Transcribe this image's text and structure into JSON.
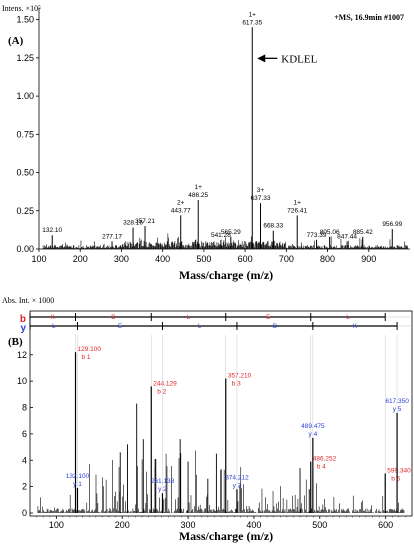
{
  "panelA": {
    "panel_label": "(A)",
    "y_title": "Intens. ×10⁵",
    "ms_info": "+MS, 16.9min #1007",
    "arrow_label": "KDLEL",
    "xlabel": "Mass/charge (m/z)",
    "chart_data": {
      "type": "bar",
      "xlim": [
        100,
        1000
      ],
      "ylim": [
        0,
        1.55
      ],
      "xticks": [
        "100",
        "200",
        "300",
        "400",
        "500",
        "600",
        "700",
        "800",
        "900"
      ],
      "yticks": [
        "0.00",
        "0.25",
        "0.50",
        "0.75",
        "1.00",
        "1.25",
        "1.50"
      ],
      "peaks": [
        {
          "x": 132.1,
          "y": 0.09,
          "label": "132.10"
        },
        {
          "x": 277.17,
          "y": 0.05,
          "label": "277.17"
        },
        {
          "x": 328.16,
          "y": 0.14,
          "label": "328.16"
        },
        {
          "x": 357.21,
          "y": 0.15,
          "label": "357.21"
        },
        {
          "x": 443.77,
          "y": 0.22,
          "label": "443.77",
          "charge": "2+"
        },
        {
          "x": 486.25,
          "y": 0.32,
          "label": "486.25",
          "charge": "1+"
        },
        {
          "x": 541.28,
          "y": 0.06,
          "label": "541.28"
        },
        {
          "x": 565.29,
          "y": 0.08,
          "label": "565.29"
        },
        {
          "x": 617.35,
          "y": 1.45,
          "label": "617.35",
          "charge": "1+"
        },
        {
          "x": 637.33,
          "y": 0.3,
          "label": "637.33",
          "charge": "3+"
        },
        {
          "x": 668.33,
          "y": 0.12,
          "label": "668.33"
        },
        {
          "x": 726.41,
          "y": 0.22,
          "label": "726.41",
          "charge": "1+"
        },
        {
          "x": 773.39,
          "y": 0.06,
          "label": "773.39"
        },
        {
          "x": 805.06,
          "y": 0.08,
          "label": "805.06"
        },
        {
          "x": 847.44,
          "y": 0.05,
          "label": "847.44"
        },
        {
          "x": 885.42,
          "y": 0.08,
          "label": "885.42"
        },
        {
          "x": 956.99,
          "y": 0.13,
          "label": "956.99"
        }
      ]
    }
  },
  "panelB": {
    "panel_label": "(B)",
    "y_title": "Abs. Int. × 1000",
    "b_label": "b",
    "y_label": "y",
    "seq": [
      "K",
      "D",
      "L",
      "E",
      "L"
    ],
    "y_seq": [
      "L",
      "E",
      "L",
      "D",
      "K"
    ],
    "xlabel": "Mass/charge (m/z)",
    "chart_data": {
      "type": "bar",
      "xlim": [
        60,
        640
      ],
      "ylim": [
        0,
        13.5
      ],
      "xticks": [
        "100",
        "200",
        "300",
        "400",
        "500",
        "600"
      ],
      "yticks": [
        "0",
        "2",
        "4",
        "6",
        "8",
        "10",
        "12"
      ],
      "b_ions": [
        {
          "x": 129.1,
          "y": 12.2,
          "mz": "129.100",
          "ion": "b 1"
        },
        {
          "x": 244.129,
          "y": 9.6,
          "mz": "244.129",
          "ion": "b 2"
        },
        {
          "x": 357.21,
          "y": 10.2,
          "mz": "357.210",
          "ion": "b 3"
        },
        {
          "x": 486.252,
          "y": 3.9,
          "mz": "486.252",
          "ion": "b 4"
        },
        {
          "x": 599.34,
          "y": 3.0,
          "mz": "599.340",
          "ion": "b 5"
        }
      ],
      "y_ions": [
        {
          "x": 132.1,
          "y": 1.9,
          "mz": "132.100",
          "ion": "y 1"
        },
        {
          "x": 261.138,
          "y": 1.5,
          "mz": "261.138",
          "ion": "y 2"
        },
        {
          "x": 374.212,
          "y": 1.8,
          "mz": "374.212",
          "ion": "y 3"
        },
        {
          "x": 489.475,
          "y": 5.7,
          "mz": "489.475",
          "ion": "y 4"
        },
        {
          "x": 617.35,
          "y": 7.6,
          "mz": "617.350",
          "ion": "y 5"
        }
      ]
    }
  }
}
